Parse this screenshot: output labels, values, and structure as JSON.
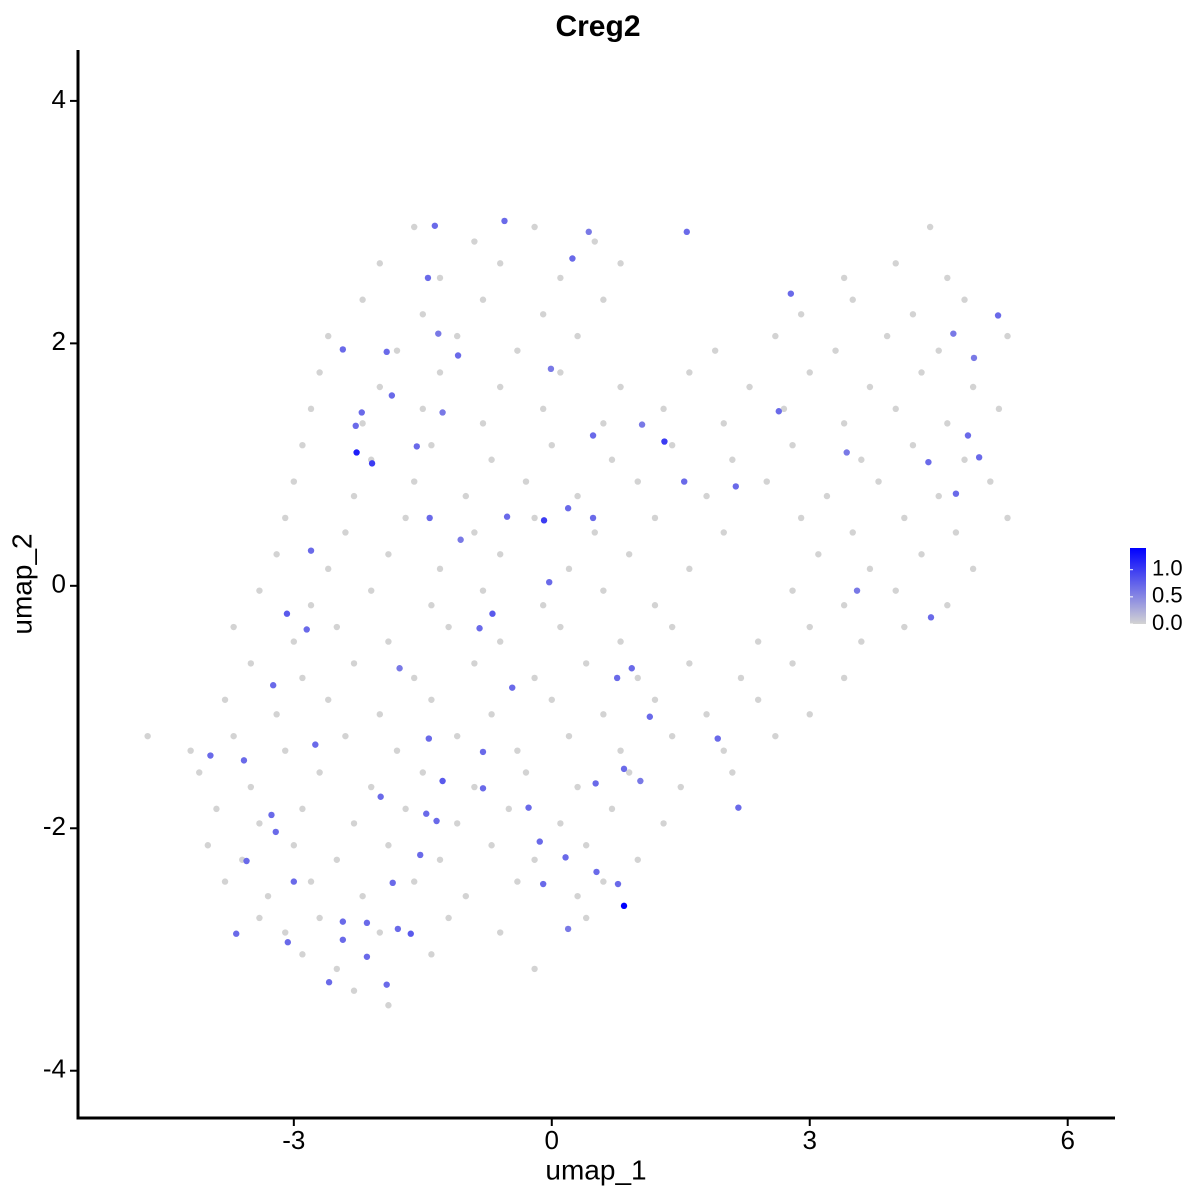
{
  "chart_data": {
    "type": "scatter",
    "title": "Creg2",
    "x_label": "umap_1",
    "y_label": "umap_2",
    "xlim": [
      -5.51,
      6.55
    ],
    "ylim": [
      -4.39,
      4.42
    ],
    "xticks": [
      -3,
      0,
      3,
      6
    ],
    "yticks": [
      -4,
      -2,
      0,
      2,
      4
    ],
    "color_low": "#d3d3d3",
    "color_high": "#0000ff",
    "color_range": [
      0,
      1.4
    ],
    "color_ticks": [
      {
        "value": 0,
        "label": "0.0"
      },
      0.5,
      {
        "value": 1,
        "label": "1.0"
      }
    ],
    "x": [
      -2.3,
      -1.9,
      -2.9,
      -2.5,
      -1.4,
      -0.2,
      -3.4,
      -3.1,
      -2.7,
      -2.0,
      -1.2,
      -0.6,
      0.4,
      -3.8,
      -3.3,
      -2.8,
      -2.2,
      -1.6,
      -1.0,
      -0.4,
      0.3,
      0.6,
      -4.0,
      -3.6,
      -3.0,
      -2.5,
      -1.9,
      -1.3,
      -0.7,
      -0.2,
      0.4,
      1.0,
      -3.9,
      -3.4,
      -2.9,
      -2.3,
      -1.7,
      -1.1,
      -0.5,
      0.1,
      0.7,
      1.3,
      -4.1,
      -3.5,
      -2.7,
      -2.1,
      -1.5,
      -0.9,
      -0.3,
      0.3,
      0.9,
      1.5,
      2.1,
      -4.7,
      -4.2,
      -3.7,
      -3.1,
      -2.4,
      -1.8,
      -1.1,
      -0.4,
      0.2,
      0.8,
      1.4,
      2.0,
      2.6,
      -3.8,
      -3.2,
      -2.6,
      -2.0,
      -1.4,
      -0.7,
      0.0,
      0.6,
      1.2,
      1.8,
      2.4,
      3.0,
      -3.5,
      -2.9,
      -2.3,
      -1.6,
      -0.9,
      -0.2,
      0.4,
      1.0,
      1.6,
      2.2,
      2.8,
      3.4,
      -3.7,
      -3.0,
      -2.5,
      -1.9,
      -1.2,
      -0.6,
      0.1,
      0.8,
      1.4,
      2.4,
      3.0,
      3.6,
      4.1,
      -3.4,
      -2.8,
      -2.1,
      -1.4,
      -0.8,
      -0.1,
      0.6,
      1.2,
      2.8,
      3.4,
      4.0,
      4.6,
      -3.2,
      -2.6,
      -1.9,
      -1.3,
      -0.6,
      0.2,
      0.9,
      1.6,
      3.1,
      3.7,
      4.3,
      4.9,
      -3.1,
      -2.4,
      -1.7,
      -0.9,
      -0.2,
      0.5,
      1.2,
      2.0,
      2.9,
      3.5,
      4.1,
      4.7,
      5.3,
      -3.0,
      -2.3,
      -1.6,
      -1.0,
      -0.3,
      0.3,
      1.0,
      1.8,
      2.5,
      3.2,
      3.8,
      4.5,
      5.1,
      -2.9,
      -2.1,
      -1.4,
      -0.7,
      0.0,
      0.7,
      1.4,
      2.1,
      2.8,
      3.6,
      4.2,
      4.8,
      -2.8,
      -2.2,
      -1.5,
      -0.8,
      -0.1,
      0.6,
      1.3,
      2.0,
      2.7,
      3.4,
      4.0,
      4.6,
      5.2,
      -2.7,
      -2.0,
      -1.3,
      -0.6,
      0.1,
      0.8,
      1.6,
      2.3,
      3.0,
      3.7,
      4.3,
      4.9,
      -2.6,
      -1.8,
      -1.1,
      -0.4,
      0.3,
      1.9,
      2.6,
      3.3,
      3.9,
      4.5,
      5.3,
      -2.2,
      -1.5,
      -0.8,
      -0.1,
      0.6,
      2.9,
      3.5,
      4.2,
      4.8,
      -2.0,
      -1.3,
      -0.6,
      0.1,
      0.8,
      3.4,
      4.0,
      4.6,
      -1.6,
      -0.9,
      -0.2,
      0.5,
      4.4,
      -0.55,
      -1.36,
      0.43,
      1.57,
      0.24,
      -1.44,
      2.78,
      5.19,
      4.67,
      -1.32,
      -2.43,
      -1.92,
      -1.09,
      4.91,
      -0.01,
      -1.86,
      -2.21,
      2.64,
      -1.27,
      -2.28,
      1.05,
      0.48,
      4.84,
      1.31,
      -1.57,
      3.43,
      -2.27,
      -2.09,
      4.97,
      4.38,
      2.14,
      1.54,
      4.7,
      0.19,
      -1.42,
      -0.52,
      0.48,
      -0.09,
      -1.06,
      -2.8,
      -0.03,
      3.55,
      -3.08,
      4.41,
      -0.69,
      -2.85,
      -0.84,
      0.93,
      -1.77,
      0.76,
      -3.24,
      -0.46,
      1.14,
      -2.75,
      -1.43,
      1.93,
      -0.8,
      -3.58,
      -3.97,
      0.84,
      -1.27,
      1.03,
      0.51,
      -0.8,
      -1.99,
      2.17,
      -0.27,
      -1.46,
      -3.26,
      -1.34,
      -3.21,
      -0.14,
      -1.53,
      0.16,
      -3.55,
      0.52,
      -3.0,
      -1.85,
      -0.1,
      0.77,
      0.84,
      -2.43,
      -2.15,
      -1.79,
      -1.64,
      0.19,
      -3.67,
      -3.07,
      -2.43,
      -2.15,
      -2.59,
      -1.92
    ],
    "y": [
      -3.34,
      -3.46,
      -3.04,
      -3.16,
      -3.04,
      -3.16,
      -2.74,
      -2.86,
      -2.74,
      -2.86,
      -2.74,
      -2.86,
      -2.74,
      -2.44,
      -2.56,
      -2.44,
      -2.56,
      -2.44,
      -2.56,
      -2.44,
      -2.56,
      -2.44,
      -2.14,
      -2.26,
      -2.14,
      -2.26,
      -2.14,
      -2.26,
      -2.14,
      -2.26,
      -2.14,
      -2.26,
      -1.84,
      -1.96,
      -1.84,
      -1.96,
      -1.84,
      -1.96,
      -1.84,
      -1.96,
      -1.84,
      -1.96,
      -1.54,
      -1.66,
      -1.54,
      -1.66,
      -1.54,
      -1.66,
      -1.54,
      -1.66,
      -1.54,
      -1.66,
      -1.54,
      -1.24,
      -1.36,
      -1.24,
      -1.36,
      -1.24,
      -1.36,
      -1.24,
      -1.36,
      -1.24,
      -1.36,
      -1.24,
      -1.36,
      -1.24,
      -0.94,
      -1.06,
      -0.94,
      -1.06,
      -0.94,
      -1.06,
      -0.94,
      -1.06,
      -0.94,
      -1.06,
      -0.94,
      -1.06,
      -0.64,
      -0.76,
      -0.64,
      -0.76,
      -0.64,
      -0.76,
      -0.64,
      -0.76,
      -0.64,
      -0.76,
      -0.64,
      -0.76,
      -0.34,
      -0.46,
      -0.34,
      -0.46,
      -0.34,
      -0.46,
      -0.34,
      -0.46,
      -0.34,
      -0.46,
      -0.34,
      -0.46,
      -0.34,
      -0.04,
      -0.16,
      -0.04,
      -0.16,
      -0.04,
      -0.16,
      -0.04,
      -0.16,
      -0.04,
      -0.16,
      -0.04,
      -0.16,
      0.26,
      0.14,
      0.26,
      0.14,
      0.26,
      0.14,
      0.26,
      0.14,
      0.26,
      0.14,
      0.26,
      0.14,
      0.56,
      0.44,
      0.56,
      0.44,
      0.56,
      0.44,
      0.56,
      0.44,
      0.56,
      0.44,
      0.56,
      0.44,
      0.56,
      0.86,
      0.74,
      0.86,
      0.74,
      0.86,
      0.74,
      0.86,
      0.74,
      0.86,
      0.74,
      0.86,
      0.74,
      0.86,
      1.16,
      1.04,
      1.16,
      1.04,
      1.16,
      1.04,
      1.16,
      1.04,
      1.16,
      1.04,
      1.16,
      1.04,
      1.46,
      1.34,
      1.46,
      1.34,
      1.46,
      1.34,
      1.46,
      1.34,
      1.46,
      1.34,
      1.46,
      1.34,
      1.46,
      1.76,
      1.64,
      1.76,
      1.64,
      1.76,
      1.64,
      1.76,
      1.64,
      1.76,
      1.64,
      1.76,
      1.64,
      2.06,
      1.94,
      2.06,
      1.94,
      2.06,
      1.94,
      2.06,
      1.94,
      2.06,
      1.94,
      2.06,
      2.36,
      2.24,
      2.36,
      2.24,
      2.36,
      2.24,
      2.36,
      2.24,
      2.36,
      2.66,
      2.54,
      2.66,
      2.54,
      2.66,
      2.54,
      2.66,
      2.54,
      2.96,
      2.84,
      2.96,
      2.84,
      2.96,
      3.01,
      2.97,
      2.92,
      2.92,
      2.7,
      2.54,
      2.41,
      2.23,
      2.08,
      2.08,
      1.95,
      1.93,
      1.9,
      1.88,
      1.79,
      1.57,
      1.43,
      1.44,
      1.43,
      1.32,
      1.33,
      1.24,
      1.24,
      1.19,
      1.15,
      1.1,
      1.1,
      1.01,
      1.06,
      1.02,
      0.82,
      0.86,
      0.76,
      0.64,
      0.56,
      0.57,
      0.56,
      0.54,
      0.38,
      0.29,
      0.03,
      -0.04,
      -0.23,
      -0.26,
      -0.23,
      -0.36,
      -0.35,
      -0.68,
      -0.68,
      -0.76,
      -0.82,
      -0.84,
      -1.08,
      -1.31,
      -1.26,
      -1.26,
      -1.37,
      -1.44,
      -1.4,
      -1.51,
      -1.61,
      -1.61,
      -1.63,
      -1.67,
      -1.74,
      -1.83,
      -1.83,
      -1.88,
      -1.89,
      -1.94,
      -2.03,
      -2.11,
      -2.22,
      -2.24,
      -2.27,
      -2.36,
      -2.44,
      -2.45,
      -2.46,
      -2.46,
      -2.64,
      -2.77,
      -2.78,
      -2.83,
      -2.87,
      -2.83,
      -2.87,
      -2.94,
      -2.92,
      -3.06,
      -3.27,
      -3.29
    ],
    "values": [
      0,
      0,
      0,
      0,
      0,
      0,
      0,
      0,
      0,
      0,
      0,
      0,
      0,
      0,
      0,
      0,
      0,
      0,
      0,
      0,
      0,
      0,
      0,
      0,
      0,
      0,
      0,
      0,
      0,
      0,
      0,
      0,
      0,
      0,
      0,
      0,
      0,
      0,
      0,
      0,
      0,
      0,
      0,
      0,
      0,
      0,
      0,
      0,
      0,
      0,
      0,
      0,
      0,
      0,
      0,
      0,
      0,
      0,
      0,
      0,
      0,
      0,
      0,
      0,
      0,
      0,
      0,
      0,
      0,
      0,
      0,
      0,
      0,
      0,
      0,
      0,
      0,
      0,
      0,
      0,
      0,
      0,
      0,
      0,
      0,
      0,
      0,
      0,
      0,
      0,
      0,
      0,
      0,
      0,
      0,
      0,
      0,
      0,
      0,
      0,
      0,
      0,
      0,
      0,
      0,
      0,
      0,
      0,
      0,
      0,
      0,
      0,
      0,
      0,
      0,
      0,
      0,
      0,
      0,
      0,
      0,
      0,
      0,
      0,
      0,
      0,
      0,
      0,
      0,
      0,
      0,
      0,
      0,
      0,
      0,
      0,
      0,
      0,
      0,
      0,
      0,
      0,
      0,
      0,
      0,
      0,
      0,
      0,
      0,
      0,
      0,
      0,
      0,
      0,
      0,
      0,
      0,
      0,
      0,
      0,
      0,
      0,
      0,
      0,
      0,
      0,
      0,
      0,
      0,
      0,
      0,
      0,
      0,
      0,
      0,
      0,
      0,
      0,
      0,
      0,
      0,
      0,
      0,
      0,
      0,
      0,
      0,
      0,
      0,
      0,
      0,
      0,
      0,
      0,
      0,
      0,
      0,
      0,
      0,
      0,
      0,
      0,
      0,
      0,
      0,
      0,
      0,
      0,
      0,
      0,
      0,
      0,
      0,
      0,
      0,
      0,
      0,
      0,
      0,
      0,
      0,
      0,
      0,
      0.7,
      0.7,
      0.6,
      0.7,
      0.7,
      0.7,
      0.7,
      0.7,
      0.6,
      0.6,
      0.7,
      0.7,
      0.7,
      0.6,
      0.6,
      0.7,
      0.7,
      0.7,
      0.6,
      0.7,
      0.6,
      0.7,
      0.7,
      1.0,
      0.7,
      0.6,
      1.2,
      1.0,
      0.7,
      0.7,
      0.7,
      0.7,
      0.7,
      0.7,
      0.7,
      0.7,
      0.7,
      1.0,
      0.6,
      0.7,
      0.7,
      0.6,
      0.8,
      0.7,
      0.8,
      0.7,
      0.7,
      0.7,
      0.6,
      0.7,
      0.7,
      0.7,
      0.7,
      0.7,
      0.7,
      0.7,
      0.7,
      0.7,
      0.7,
      0.7,
      0.8,
      0.6,
      0.7,
      0.7,
      0.7,
      0.7,
      0.7,
      0.7,
      0.7,
      0.7,
      0.7,
      0.7,
      0.7,
      0.7,
      0.7,
      0.7,
      0.7,
      0.7,
      0.7,
      0.7,
      1.4,
      0.7,
      0.7,
      0.7,
      0.8,
      0.6,
      0.7,
      0.7,
      0.7,
      0.7,
      0.7,
      0.7
    ]
  }
}
